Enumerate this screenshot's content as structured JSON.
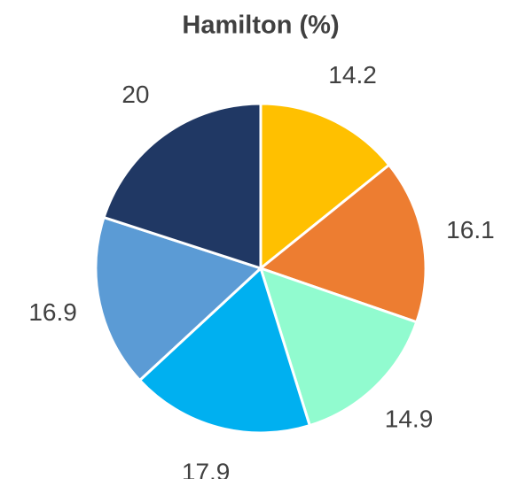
{
  "chart_data": {
    "type": "pie",
    "title": "Hamilton (%)",
    "values": [
      14.2,
      16.1,
      14.9,
      17.9,
      16.9,
      20
    ],
    "colors": [
      "#ffc000",
      "#ed7d31",
      "#91fbcf",
      "#00b0f0",
      "#5b9bd5",
      "#203864"
    ],
    "start_angle": 0,
    "direction": "clockwise"
  }
}
